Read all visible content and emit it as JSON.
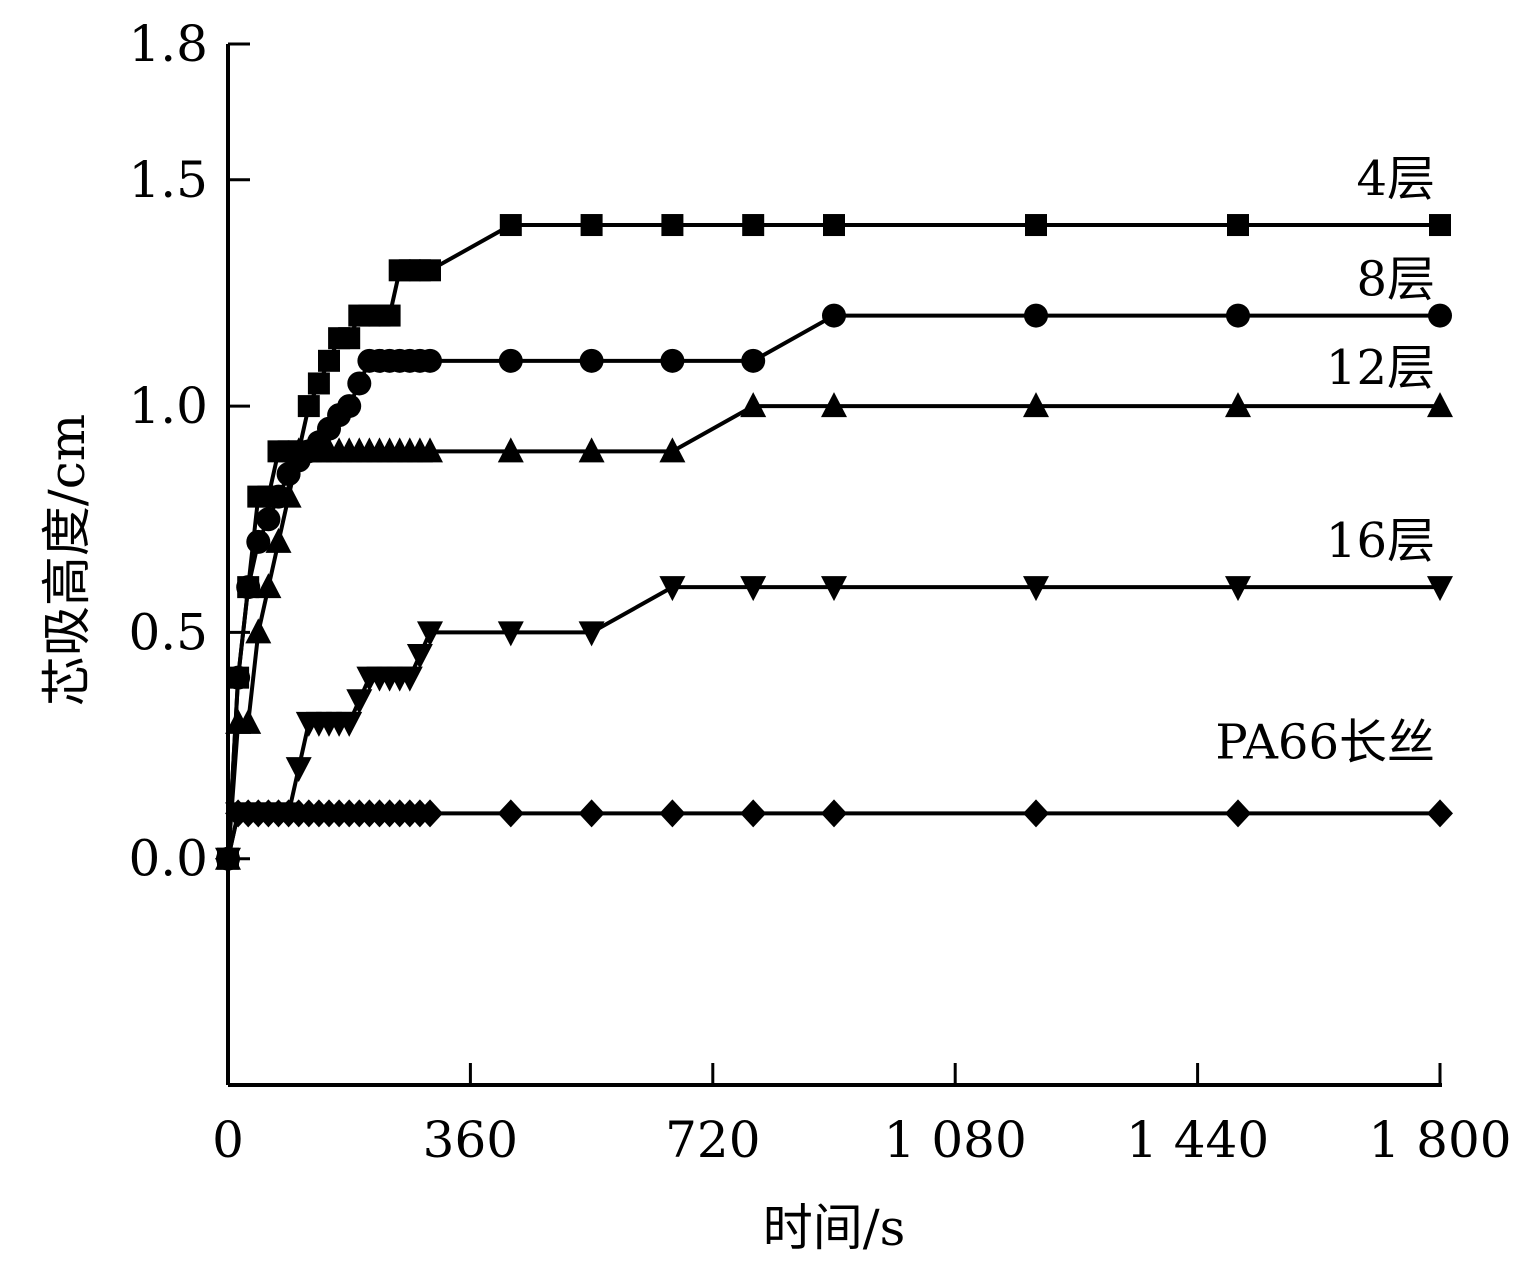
{
  "chart_data": {
    "type": "line",
    "title": "",
    "xlabel": "时间/s",
    "ylabel": "芯吸高度/cm",
    "xlim": [
      0,
      1800
    ],
    "ylim": [
      -0.5,
      1.8
    ],
    "xticks": [
      0,
      360,
      720,
      1080,
      1440,
      1800
    ],
    "xtick_labels": [
      "0",
      "360",
      "720",
      "1 080",
      "1 440",
      "1 800"
    ],
    "yticks": [
      0.0,
      0.5,
      1.0,
      1.5,
      1.8
    ],
    "ytick_labels": [
      "0.0",
      "0.5",
      "1.0",
      "1.5",
      "1.8"
    ],
    "grid": false,
    "legend": "inline labels at right",
    "series": [
      {
        "name": "4层",
        "marker": "square",
        "x": [
          0,
          15,
          30,
          45,
          60,
          75,
          90,
          105,
          120,
          135,
          150,
          165,
          180,
          195,
          210,
          225,
          240,
          255,
          270,
          285,
          300,
          420,
          540,
          660,
          780,
          900,
          1200,
          1500,
          1800
        ],
        "y": [
          0,
          0.4,
          0.6,
          0.8,
          0.8,
          0.9,
          0.9,
          0.9,
          1.0,
          1.05,
          1.1,
          1.15,
          1.15,
          1.2,
          1.2,
          1.2,
          1.2,
          1.3,
          1.3,
          1.3,
          1.3,
          1.4,
          1.4,
          1.4,
          1.4,
          1.4,
          1.4,
          1.4,
          1.4
        ]
      },
      {
        "name": "8层",
        "marker": "circle",
        "x": [
          0,
          15,
          30,
          45,
          60,
          75,
          90,
          105,
          120,
          135,
          150,
          165,
          180,
          195,
          210,
          225,
          240,
          255,
          270,
          285,
          300,
          420,
          540,
          660,
          780,
          900,
          1200,
          1500,
          1800
        ],
        "y": [
          0,
          0.4,
          0.6,
          0.7,
          0.75,
          0.8,
          0.85,
          0.88,
          0.9,
          0.92,
          0.95,
          0.98,
          1.0,
          1.05,
          1.1,
          1.1,
          1.1,
          1.1,
          1.1,
          1.1,
          1.1,
          1.1,
          1.1,
          1.1,
          1.1,
          1.2,
          1.2,
          1.2,
          1.2
        ]
      },
      {
        "name": "12层",
        "marker": "triangle-up",
        "x": [
          0,
          15,
          30,
          45,
          60,
          75,
          90,
          105,
          120,
          135,
          150,
          165,
          180,
          195,
          210,
          225,
          240,
          255,
          270,
          285,
          300,
          420,
          540,
          660,
          780,
          900,
          1200,
          1500,
          1800
        ],
        "y": [
          0,
          0.3,
          0.3,
          0.5,
          0.6,
          0.7,
          0.8,
          0.9,
          0.9,
          0.9,
          0.9,
          0.9,
          0.9,
          0.9,
          0.9,
          0.9,
          0.9,
          0.9,
          0.9,
          0.9,
          0.9,
          0.9,
          0.9,
          0.9,
          1.0,
          1.0,
          1.0,
          1.0,
          1.0
        ]
      },
      {
        "name": "16层",
        "marker": "triangle-down",
        "x": [
          0,
          15,
          30,
          45,
          60,
          75,
          90,
          105,
          120,
          135,
          150,
          165,
          180,
          195,
          210,
          225,
          240,
          255,
          270,
          285,
          300,
          420,
          540,
          660,
          780,
          900,
          1200,
          1500,
          1800
        ],
        "y": [
          0,
          0.1,
          0.1,
          0.1,
          0.1,
          0.1,
          0.1,
          0.2,
          0.3,
          0.3,
          0.3,
          0.3,
          0.3,
          0.35,
          0.4,
          0.4,
          0.4,
          0.4,
          0.4,
          0.45,
          0.5,
          0.5,
          0.5,
          0.6,
          0.6,
          0.6,
          0.6,
          0.6,
          0.6
        ]
      },
      {
        "name": "PA66长丝",
        "marker": "diamond",
        "x": [
          0,
          15,
          30,
          45,
          60,
          75,
          90,
          105,
          120,
          135,
          150,
          165,
          180,
          195,
          210,
          225,
          240,
          255,
          270,
          285,
          300,
          420,
          540,
          660,
          780,
          900,
          1200,
          1500,
          1800
        ],
        "y": [
          0,
          0.1,
          0.1,
          0.1,
          0.1,
          0.1,
          0.1,
          0.1,
          0.1,
          0.1,
          0.1,
          0.1,
          0.1,
          0.1,
          0.1,
          0.1,
          0.1,
          0.1,
          0.1,
          0.1,
          0.1,
          0.1,
          0.1,
          0.1,
          0.1,
          0.1,
          0.1,
          0.1,
          0.1
        ]
      }
    ]
  }
}
